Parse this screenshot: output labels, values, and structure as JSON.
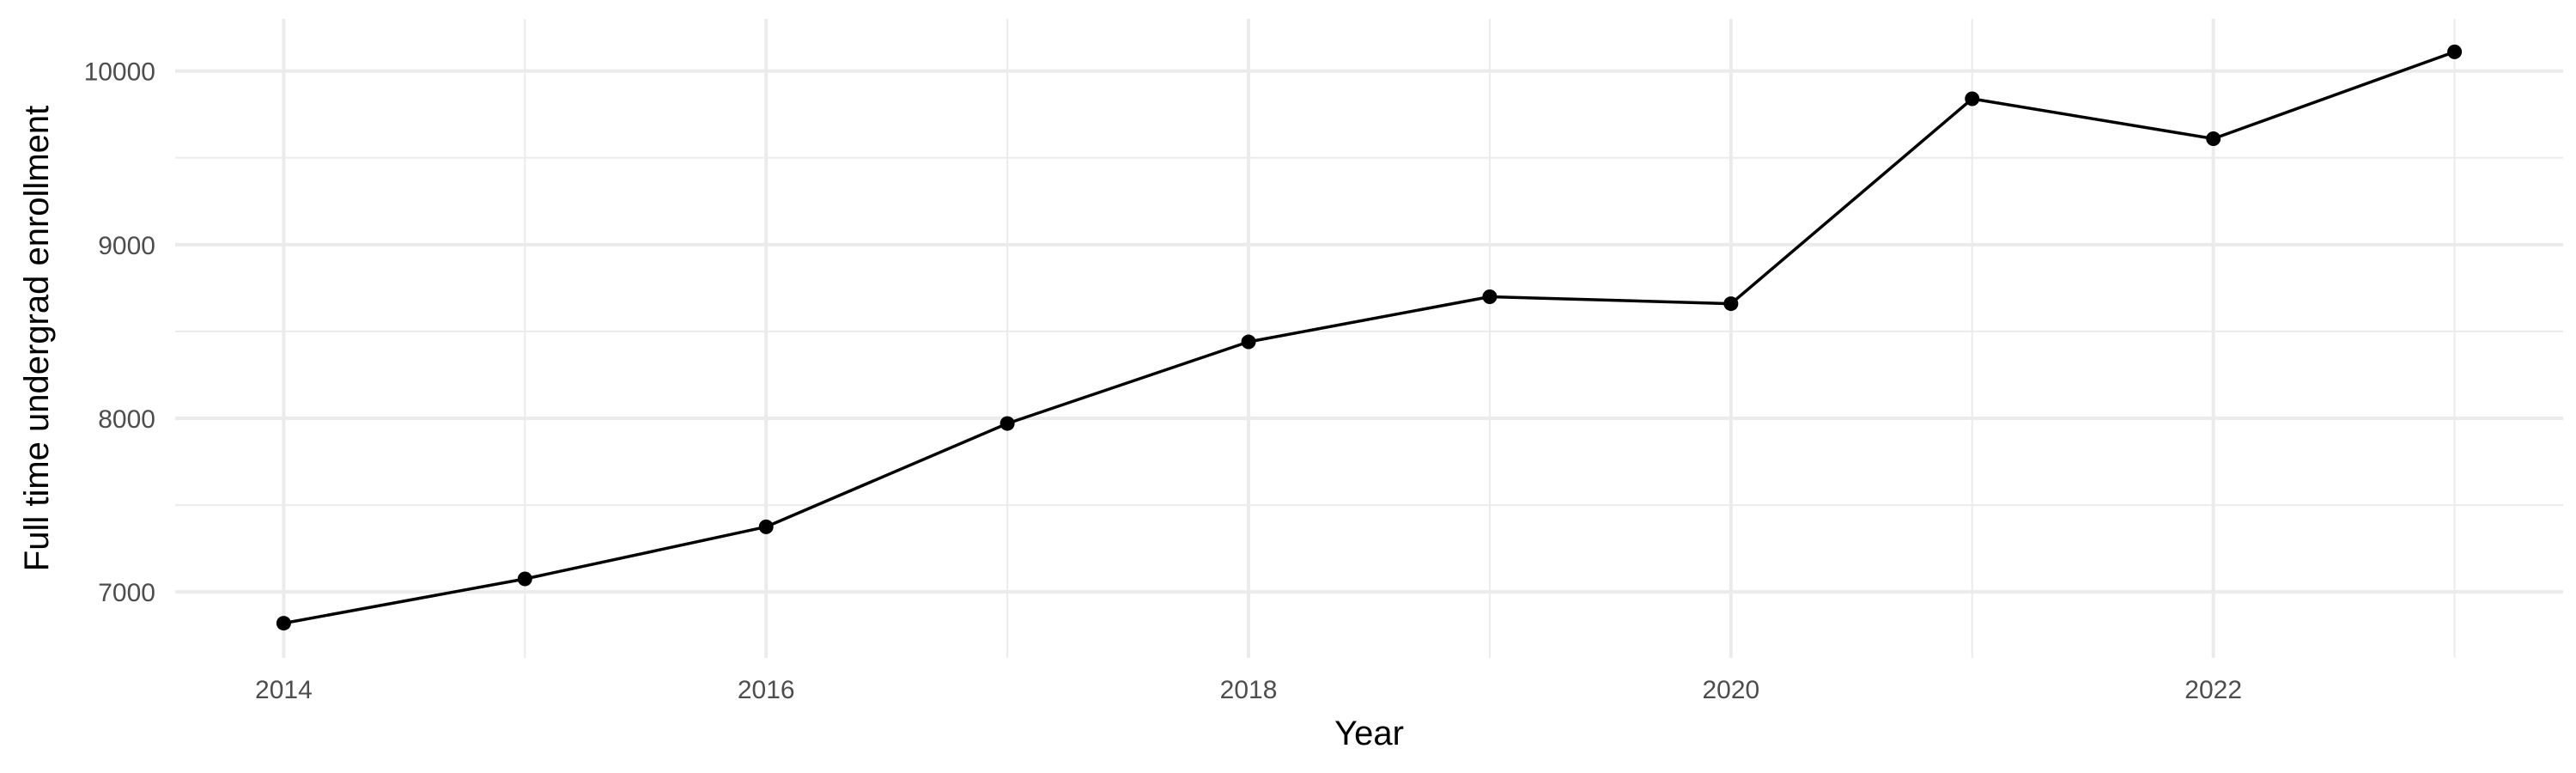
{
  "chart_data": {
    "type": "line",
    "title": "",
    "xlabel": "Year",
    "ylabel": "Full time undergrad enrollment",
    "x": [
      2014,
      2015,
      2016,
      2017,
      2018,
      2019,
      2020,
      2021,
      2022,
      2023
    ],
    "series": [
      {
        "values": [
          6820,
          7075,
          7375,
          7970,
          8440,
          8700,
          8660,
          9840,
          9610,
          10110
        ]
      }
    ],
    "xlim": [
      2013.55,
      2023.45
    ],
    "ylim": [
      6620,
      10300
    ],
    "x_ticks": [
      2014,
      2016,
      2018,
      2020,
      2022
    ],
    "x_tick_labels": [
      "2014",
      "2016",
      "2018",
      "2020",
      "2022"
    ],
    "x_minor_ticks": [
      2015,
      2017,
      2019,
      2021,
      2023
    ],
    "y_ticks": [
      7000,
      8000,
      9000,
      10000
    ],
    "y_tick_labels": [
      "7000",
      "8000",
      "9000",
      "10000"
    ],
    "y_minor_ticks": [
      7500,
      8500,
      9500
    ],
    "grid": true,
    "legend": "none",
    "colors": {
      "line": "#000000",
      "point": "#000000",
      "grid": "#ebebeb",
      "background": "#ffffff"
    }
  }
}
